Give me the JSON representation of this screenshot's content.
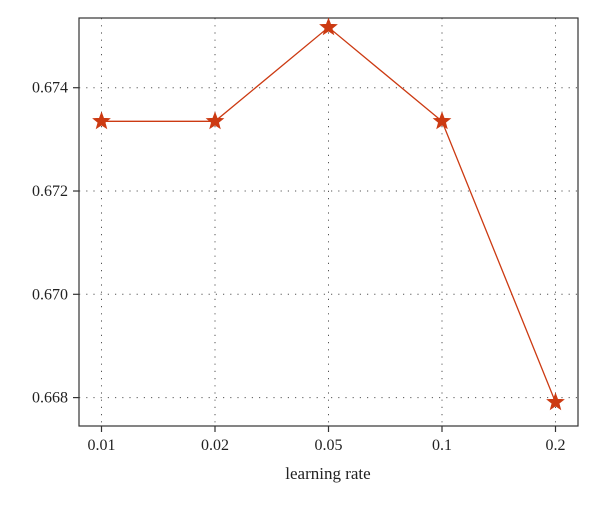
{
  "chart_data": {
    "type": "line",
    "title": "",
    "xlabel": "learning rate",
    "ylabel": "",
    "categories": [
      "0.01",
      "0.02",
      "0.05",
      "0.1",
      "0.2"
    ],
    "series": [
      {
        "values": [
          0.67335,
          0.67335,
          0.67517,
          0.67335,
          0.66791
        ],
        "color": "#cc3a12",
        "marker": "star"
      }
    ],
    "ylim": [
      0.66745,
      0.67535
    ],
    "yticks": [
      0.668,
      0.67,
      0.672,
      0.674
    ],
    "ytick_labels": [
      "0.668",
      "0.670",
      "0.672",
      "0.674"
    ],
    "grid": true,
    "grid_style": "dotted",
    "legend": "none"
  }
}
